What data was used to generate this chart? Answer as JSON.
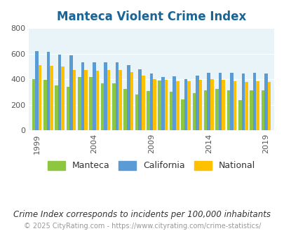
{
  "title": "Manteca Violent Crime Index",
  "title_color": "#1a6496",
  "subtitle": "Crime Index corresponds to incidents per 100,000 inhabitants",
  "footer": "© 2025 CityRating.com - https://www.cityrating.com/crime-statistics/",
  "years": [
    1999,
    2000,
    2001,
    2002,
    2003,
    2004,
    2005,
    2006,
    2007,
    2008,
    2009,
    2010,
    2011,
    2012,
    2013,
    2014,
    2015,
    2016,
    2017,
    2018,
    2019
  ],
  "manteca": [
    400,
    395,
    350,
    340,
    415,
    420,
    370,
    370,
    325,
    280,
    310,
    390,
    300,
    245,
    290,
    315,
    325,
    315,
    235,
    315,
    315
  ],
  "california": [
    620,
    615,
    595,
    585,
    535,
    530,
    535,
    530,
    510,
    480,
    445,
    415,
    425,
    400,
    430,
    450,
    450,
    450,
    445,
    450,
    445
  ],
  "national": [
    510,
    505,
    500,
    475,
    470,
    465,
    475,
    470,
    455,
    430,
    400,
    395,
    385,
    385,
    395,
    400,
    395,
    385,
    380,
    385,
    380
  ],
  "bar_width": 0.28,
  "ylim": [
    0,
    800
  ],
  "yticks": [
    0,
    200,
    400,
    600,
    800
  ],
  "xtick_years": [
    1999,
    2004,
    2009,
    2014,
    2019
  ],
  "color_manteca": "#8dc63f",
  "color_california": "#5b9bd5",
  "color_national": "#ffc000",
  "bg_color": "#e8f4f8",
  "legend_labels": [
    "Manteca",
    "California",
    "National"
  ],
  "legend_fontsize": 9,
  "subtitle_fontsize": 8.5,
  "footer_fontsize": 7
}
